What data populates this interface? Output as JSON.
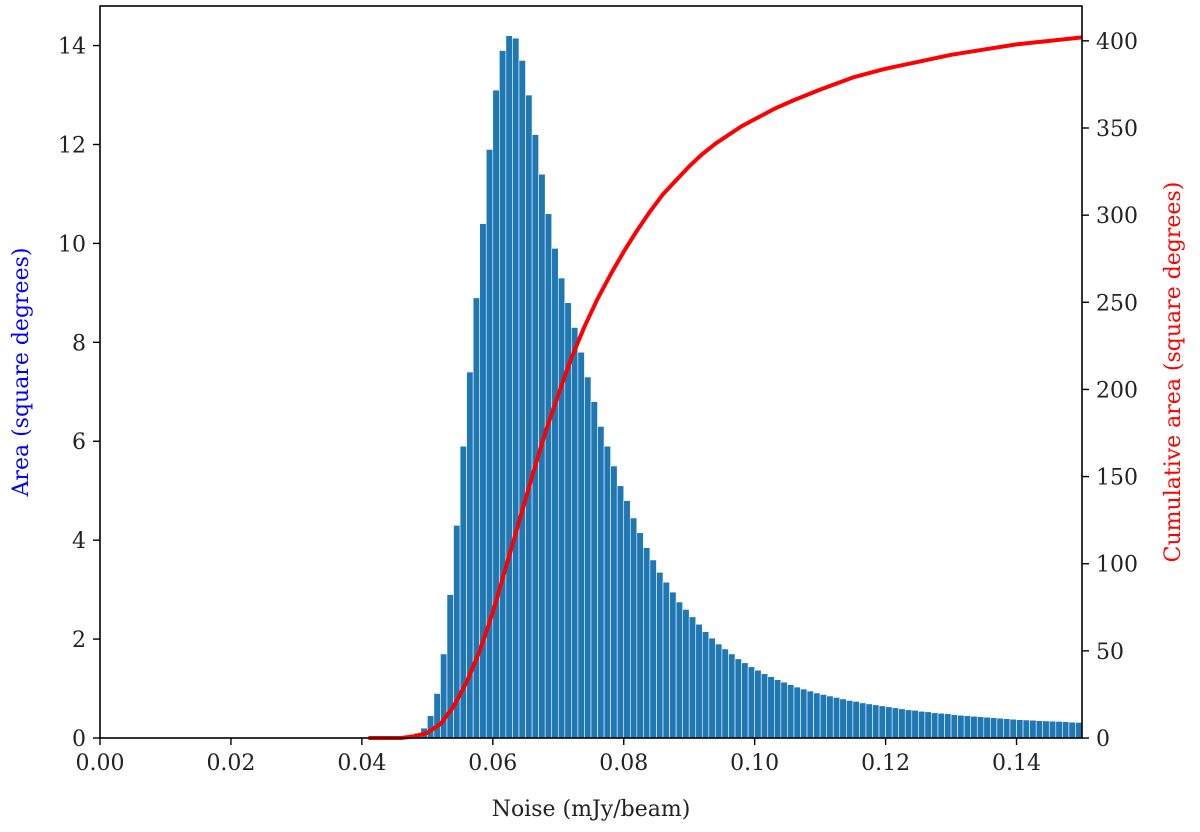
{
  "chart_data": {
    "type": "bar",
    "xlabel": "Noise (mJy/beam)",
    "ylabel": "Area (square degrees)",
    "ylabel_right": "Cumulative area (square degrees)",
    "xlim": [
      0,
      0.15
    ],
    "ylim": [
      0,
      14.8
    ],
    "ylim_right": [
      0,
      420
    ],
    "xticks": [
      0.0,
      0.02,
      0.04,
      0.06,
      0.08,
      0.1,
      0.12,
      0.14
    ],
    "xtick_labels": [
      "0.00",
      "0.02",
      "0.04",
      "0.06",
      "0.08",
      "0.10",
      "0.12",
      "0.14"
    ],
    "yticks": [
      0,
      2,
      4,
      6,
      8,
      10,
      12,
      14
    ],
    "yticks_right": [
      0,
      50,
      100,
      150,
      200,
      250,
      300,
      350,
      400
    ],
    "grid": false,
    "colors": {
      "bars": "#1f77b4",
      "cumulative": "#ff0000",
      "left_axis_label": "#0000ff",
      "right_axis_label": "#ff0000"
    },
    "bin_width": 0.001,
    "series": [
      {
        "type": "bar",
        "axis": "left",
        "x": [
          0.045,
          0.046,
          0.047,
          0.048,
          0.049,
          0.05,
          0.051,
          0.052,
          0.053,
          0.054,
          0.055,
          0.056,
          0.057,
          0.058,
          0.059,
          0.06,
          0.061,
          0.062,
          0.063,
          0.064,
          0.065,
          0.066,
          0.067,
          0.068,
          0.069,
          0.07,
          0.071,
          0.072,
          0.073,
          0.074,
          0.075,
          0.076,
          0.077,
          0.078,
          0.079,
          0.08,
          0.081,
          0.082,
          0.083,
          0.084,
          0.085,
          0.086,
          0.087,
          0.088,
          0.089,
          0.09,
          0.091,
          0.092,
          0.093,
          0.094,
          0.095,
          0.096,
          0.097,
          0.098,
          0.099,
          0.1,
          0.101,
          0.102,
          0.103,
          0.104,
          0.105,
          0.106,
          0.107,
          0.108,
          0.109,
          0.11,
          0.111,
          0.112,
          0.113,
          0.114,
          0.115,
          0.116,
          0.117,
          0.118,
          0.119,
          0.12,
          0.121,
          0.122,
          0.123,
          0.124,
          0.125,
          0.126,
          0.127,
          0.128,
          0.129,
          0.13,
          0.131,
          0.132,
          0.133,
          0.134,
          0.135,
          0.136,
          0.137,
          0.138,
          0.139,
          0.14,
          0.141,
          0.142,
          0.143,
          0.144,
          0.145,
          0.146,
          0.147,
          0.148,
          0.149
        ],
        "values": [
          0.02,
          0.03,
          0.05,
          0.1,
          0.2,
          0.45,
          0.9,
          1.7,
          2.9,
          4.3,
          5.9,
          7.4,
          8.9,
          10.4,
          11.9,
          13.1,
          13.9,
          14.2,
          14.15,
          13.7,
          13.0,
          12.2,
          11.4,
          10.6,
          9.9,
          9.3,
          8.8,
          8.3,
          7.8,
          7.3,
          6.8,
          6.3,
          5.9,
          5.5,
          5.1,
          4.8,
          4.45,
          4.15,
          3.85,
          3.6,
          3.35,
          3.15,
          2.95,
          2.75,
          2.6,
          2.45,
          2.3,
          2.15,
          2.02,
          1.9,
          1.8,
          1.7,
          1.6,
          1.52,
          1.44,
          1.37,
          1.3,
          1.24,
          1.18,
          1.13,
          1.08,
          1.03,
          0.99,
          0.95,
          0.91,
          0.88,
          0.85,
          0.82,
          0.79,
          0.76,
          0.74,
          0.71,
          0.69,
          0.67,
          0.65,
          0.63,
          0.61,
          0.59,
          0.57,
          0.56,
          0.54,
          0.53,
          0.51,
          0.5,
          0.49,
          0.47,
          0.46,
          0.45,
          0.44,
          0.43,
          0.42,
          0.41,
          0.4,
          0.39,
          0.38,
          0.37,
          0.365,
          0.36,
          0.35,
          0.345,
          0.34,
          0.335,
          0.33,
          0.32,
          0.315
        ]
      },
      {
        "type": "line",
        "axis": "right",
        "x": [
          0.041,
          0.046,
          0.048,
          0.05,
          0.052,
          0.054,
          0.056,
          0.058,
          0.06,
          0.062,
          0.064,
          0.066,
          0.068,
          0.07,
          0.072,
          0.074,
          0.076,
          0.078,
          0.08,
          0.082,
          0.084,
          0.086,
          0.088,
          0.09,
          0.092,
          0.094,
          0.096,
          0.098,
          0.1,
          0.103,
          0.106,
          0.11,
          0.115,
          0.12,
          0.125,
          0.13,
          0.135,
          0.14,
          0.145,
          0.15
        ],
        "values": [
          0,
          0,
          1,
          3,
          8,
          18,
          32,
          50,
          72,
          98,
          124,
          150,
          175,
          197,
          218,
          236,
          252,
          266,
          279,
          291,
          302,
          312,
          320,
          328,
          335,
          341,
          346,
          351,
          355,
          361,
          366,
          372,
          379,
          384,
          388,
          392,
          395,
          398,
          400,
          402
        ]
      }
    ]
  }
}
